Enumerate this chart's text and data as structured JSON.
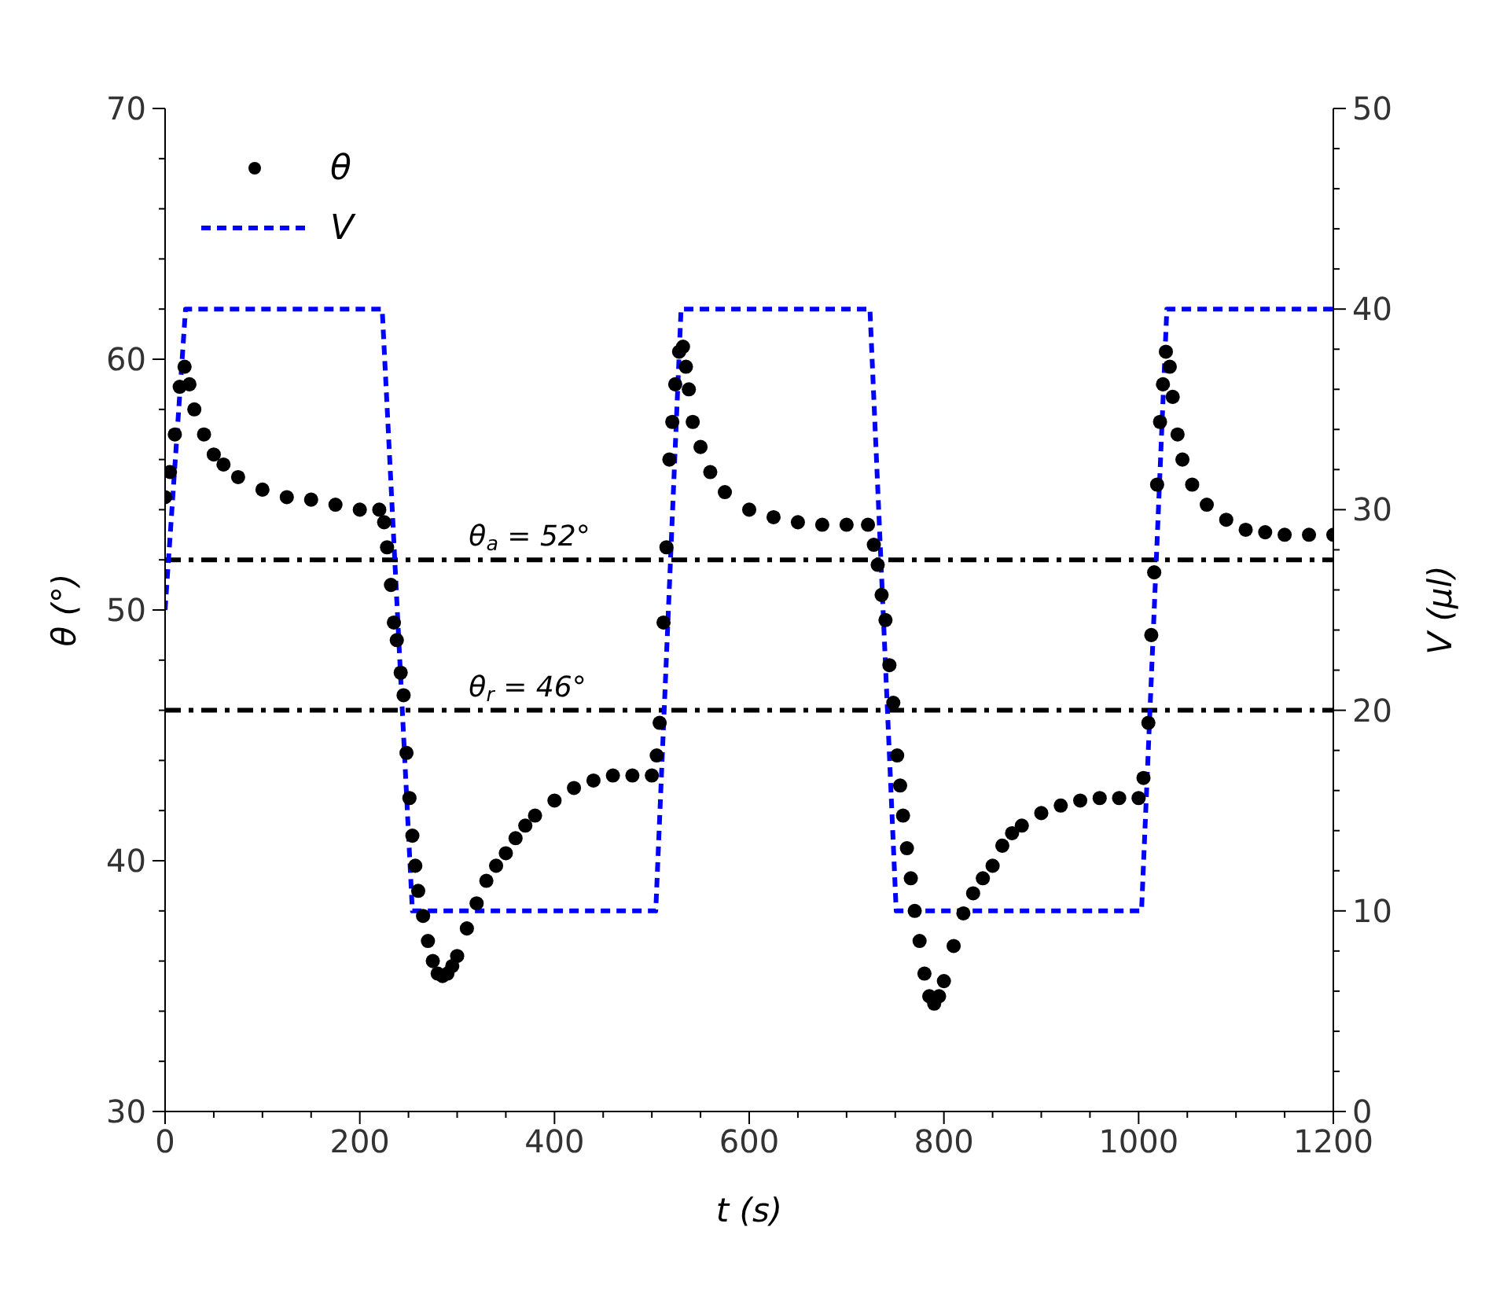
{
  "chart_data": {
    "type": "scatter",
    "xlabel": "t (s)",
    "ylabel": "θ (°)",
    "y2label": "V (μl)",
    "xlim": [
      0,
      1200
    ],
    "xticks": [
      0,
      {
        "value": 50,
        "label": null
      },
      {
        "value": 100,
        "label": null
      },
      {
        "value": 150,
        "label": null
      },
      200,
      {
        "value": 250,
        "label": null
      },
      {
        "value": 300,
        "label": null
      },
      {
        "value": 350,
        "label": null
      },
      400,
      {
        "value": 450,
        "label": null
      },
      {
        "value": 500,
        "label": null
      },
      {
        "value": 550,
        "label": null
      },
      600,
      {
        "value": 650,
        "label": null
      },
      {
        "value": 700,
        "label": null
      },
      {
        "value": 750,
        "label": null
      },
      800,
      {
        "value": 850,
        "label": null
      },
      {
        "value": 900,
        "label": null
      },
      {
        "value": 950,
        "label": null
      },
      1000,
      {
        "value": 1050,
        "label": null
      },
      {
        "value": 1100,
        "label": null
      },
      {
        "value": 1150,
        "label": null
      },
      1200
    ],
    "ylim": [
      30,
      70
    ],
    "yticks": [
      30,
      {
        "value": 32,
        "label": null
      },
      {
        "value": 34,
        "label": null
      },
      {
        "value": 36,
        "label": null
      },
      {
        "value": 38,
        "label": null
      },
      40,
      {
        "value": 42,
        "label": null
      },
      {
        "value": 44,
        "label": null
      },
      {
        "value": 46,
        "label": null
      },
      {
        "value": 48,
        "label": null
      },
      50,
      {
        "value": 52,
        "label": null
      },
      {
        "value": 54,
        "label": null
      },
      {
        "value": 56,
        "label": null
      },
      {
        "value": 58,
        "label": null
      },
      60,
      {
        "value": 62,
        "label": null
      },
      {
        "value": 64,
        "label": null
      },
      {
        "value": 66,
        "label": null
      },
      {
        "value": 68,
        "label": null
      },
      70
    ],
    "y2lim": [
      0,
      50
    ],
    "y2ticks": [
      0,
      {
        "value": 2,
        "label": null
      },
      {
        "value": 4,
        "label": null
      },
      {
        "value": 6,
        "label": null
      },
      {
        "value": 8,
        "label": null
      },
      10,
      {
        "value": 12,
        "label": null
      },
      {
        "value": 14,
        "label": null
      },
      {
        "value": 16,
        "label": null
      },
      {
        "value": 18,
        "label": null
      },
      20,
      {
        "value": 22,
        "label": null
      },
      {
        "value": 24,
        "label": null
      },
      {
        "value": 26,
        "label": null
      },
      {
        "value": 28,
        "label": null
      },
      30,
      {
        "value": 32,
        "label": null
      },
      {
        "value": 34,
        "label": null
      },
      {
        "value": 36,
        "label": null
      },
      {
        "value": 38,
        "label": null
      },
      40,
      {
        "value": 42,
        "label": null
      },
      {
        "value": 44,
        "label": null
      },
      {
        "value": 46,
        "label": null
      },
      {
        "value": 48,
        "label": null
      },
      50
    ],
    "grid": false,
    "legend": "top left",
    "series": [
      {
        "name": "θ",
        "marker": "circle",
        "color": "#000000",
        "x": [
          0,
          5,
          10,
          15,
          20,
          25,
          30,
          40,
          50,
          60,
          75,
          100,
          125,
          150,
          175,
          200,
          220,
          225,
          228,
          232,
          235,
          238,
          242,
          245,
          248,
          251,
          254,
          257,
          260,
          265,
          270,
          275,
          280,
          285,
          290,
          295,
          300,
          310,
          320,
          330,
          340,
          350,
          360,
          370,
          380,
          400,
          420,
          440,
          460,
          480,
          500,
          505,
          508,
          512,
          515,
          518,
          521,
          524,
          528,
          532,
          535,
          538,
          542,
          550,
          560,
          575,
          600,
          625,
          650,
          675,
          700,
          722,
          728,
          732,
          736,
          740,
          744,
          748,
          752,
          755,
          758,
          762,
          766,
          770,
          775,
          780,
          785,
          790,
          795,
          800,
          810,
          820,
          830,
          840,
          850,
          860,
          870,
          880,
          900,
          920,
          940,
          960,
          980,
          1000,
          1005,
          1010,
          1013,
          1016,
          1019,
          1022,
          1025,
          1028,
          1032,
          1035,
          1040,
          1045,
          1055,
          1070,
          1090,
          1110,
          1130,
          1150,
          1175,
          1200
        ],
        "values": [
          54.5,
          55.5,
          57,
          58.9,
          59.7,
          59,
          58,
          57,
          56.2,
          55.8,
          55.3,
          54.8,
          54.5,
          54.4,
          54.2,
          54,
          54,
          53.5,
          52.5,
          51,
          49.5,
          48.8,
          47.5,
          46.6,
          44.3,
          42.5,
          41,
          39.8,
          38.8,
          37.8,
          36.8,
          36,
          35.5,
          35.4,
          35.5,
          35.8,
          36.2,
          37.3,
          38.3,
          39.2,
          39.8,
          40.3,
          40.9,
          41.4,
          41.8,
          42.4,
          42.9,
          43.2,
          43.4,
          43.4,
          43.4,
          44.2,
          45.5,
          49.5,
          52.5,
          56,
          57.5,
          59,
          60.3,
          60.5,
          59.7,
          58.8,
          57.5,
          56.5,
          55.5,
          54.7,
          54,
          53.7,
          53.5,
          53.4,
          53.4,
          53.4,
          52.6,
          51.8,
          50.6,
          49.6,
          47.8,
          46.3,
          44.2,
          43,
          41.8,
          40.5,
          39.3,
          38,
          36.8,
          35.5,
          34.6,
          34.3,
          34.6,
          35.2,
          36.6,
          37.9,
          38.7,
          39.3,
          39.8,
          40.6,
          41.1,
          41.4,
          41.9,
          42.2,
          42.4,
          42.5,
          42.5,
          42.5,
          43.3,
          45.5,
          49,
          51.5,
          55,
          57.5,
          59,
          60.3,
          59.7,
          58.5,
          57,
          56,
          55,
          54.2,
          53.6,
          53.2,
          53.1,
          53,
          53,
          53
        ]
      },
      {
        "name": "V",
        "type": "line",
        "axis": "y2",
        "marker": "none",
        "line_style": "dashed",
        "color": "#0000ff",
        "x": [
          0,
          21,
          223,
          254,
          504,
          530,
          724,
          751,
          1003,
          1029,
          1200
        ],
        "values": [
          25,
          40,
          40,
          10,
          10,
          40,
          40,
          10,
          10,
          40,
          40
        ]
      }
    ],
    "ref_lines": [
      {
        "axis": "y",
        "value": 52,
        "label": "θ$_{a}$ = 52°",
        "color": "#000000",
        "line_style": "dashdot"
      },
      {
        "axis": "y",
        "value": 46,
        "label": "θ$_{r}$ = 46°",
        "color": "#000000",
        "line_style": "dashdot"
      }
    ]
  }
}
